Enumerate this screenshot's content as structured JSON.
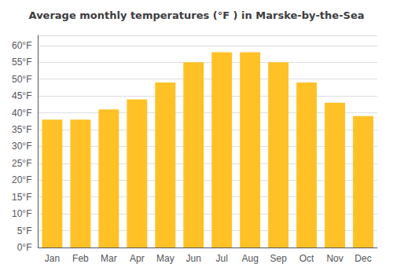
{
  "chart_data": {
    "type": "bar",
    "title": "Average monthly temperatures (°F ) in Marske-by-the-Sea",
    "categories": [
      "Jan",
      "Feb",
      "Mar",
      "Apr",
      "May",
      "Jun",
      "Jul",
      "Aug",
      "Sep",
      "Oct",
      "Nov",
      "Dec"
    ],
    "values": [
      38,
      38,
      41,
      44,
      49,
      55,
      58,
      58,
      55,
      49,
      43,
      39
    ],
    "color": "#FFC125",
    "ylim": [
      0,
      63
    ],
    "yticks": [
      {
        "value": 0,
        "label": "0°F"
      },
      {
        "value": 5,
        "label": "5°F"
      },
      {
        "value": 10,
        "label": "10°F"
      },
      {
        "value": 15,
        "label": "15°F"
      },
      {
        "value": 20,
        "label": "20°F"
      },
      {
        "value": 25,
        "label": "25°F"
      },
      {
        "value": 30,
        "label": "30°F"
      },
      {
        "value": 35,
        "label": "35°F"
      },
      {
        "value": 40,
        "label": "40°F"
      },
      {
        "value": 45,
        "label": "45°F"
      },
      {
        "value": 50,
        "label": "50°F"
      },
      {
        "value": 55,
        "label": "55°F"
      },
      {
        "value": 60,
        "label": "60°F"
      }
    ],
    "grid": true
  }
}
